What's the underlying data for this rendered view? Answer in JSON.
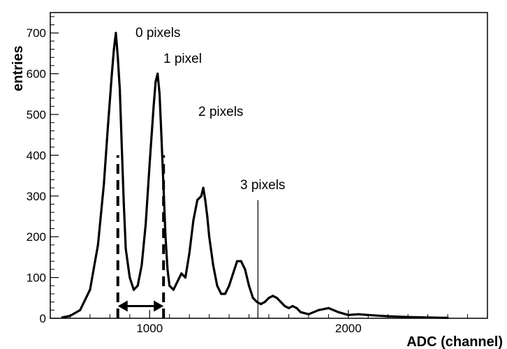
{
  "chart_data": {
    "type": "line",
    "xlabel": "ADC (channel)",
    "ylabel": "entries",
    "xlim": [
      500,
      2700
    ],
    "ylim": [
      0,
      750
    ],
    "x_ticks": [
      1000,
      2000
    ],
    "y_ticks": [
      0,
      100,
      200,
      300,
      400,
      500,
      600,
      700
    ],
    "grid": false,
    "legend": "none",
    "series": [
      {
        "x": [
          560,
          600,
          650,
          700,
          740,
          770,
          790,
          810,
          820,
          830,
          840,
          850,
          860,
          870,
          880,
          900,
          920,
          940,
          960,
          980,
          1000,
          1020,
          1030,
          1040,
          1050,
          1060,
          1070,
          1080,
          1090,
          1100,
          1120,
          1140,
          1160,
          1180,
          1200,
          1220,
          1240,
          1260,
          1270,
          1280,
          1290,
          1300,
          1320,
          1340,
          1360,
          1380,
          1400,
          1420,
          1440,
          1460,
          1480,
          1500,
          1520,
          1540,
          1560,
          1580,
          1600,
          1620,
          1640,
          1660,
          1680,
          1700,
          1720,
          1740,
          1760,
          1800,
          1850,
          1900,
          1950,
          2000,
          2050,
          2100,
          2200,
          2300,
          2400,
          2500
        ],
        "values": [
          2,
          6,
          20,
          70,
          180,
          330,
          470,
          600,
          660,
          700,
          640,
          560,
          420,
          280,
          170,
          100,
          70,
          80,
          130,
          230,
          380,
          520,
          580,
          600,
          550,
          440,
          320,
          200,
          120,
          80,
          70,
          90,
          110,
          100,
          160,
          240,
          290,
          300,
          320,
          290,
          250,
          200,
          130,
          80,
          60,
          60,
          80,
          110,
          140,
          140,
          120,
          80,
          50,
          40,
          35,
          40,
          50,
          55,
          50,
          40,
          30,
          25,
          30,
          25,
          15,
          10,
          20,
          25,
          15,
          8,
          10,
          8,
          5,
          3,
          2,
          1
        ]
      }
    ],
    "spike": {
      "x": 1545,
      "value": 290
    },
    "annotations": [
      "0 pixels",
      "1 pixel",
      "2 pixels",
      "3 pixels"
    ],
    "peak_markers_x": [
      840,
      1070
    ]
  }
}
